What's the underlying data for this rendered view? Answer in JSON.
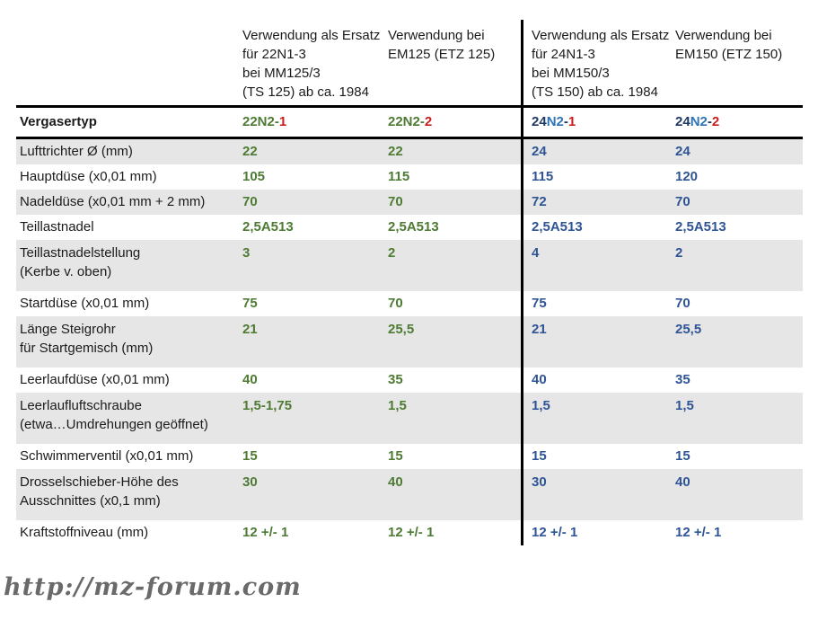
{
  "colors": {
    "green": "#4e7b33",
    "blue": "#2f5496",
    "navy": "#1f3864",
    "bright_blue": "#2e74b5",
    "red": "#c81e1e",
    "shading": "#e7e6e6",
    "text": "#1b1b1b",
    "watermark": "#6a6a6a"
  },
  "watermark": "http://mz-forum.com",
  "table": {
    "headers": [
      "Verwendung als Ersatz\nfür 22N1-3\nbei MM125/3\n(TS 125) ab ca. 1984",
      "Verwendung bei\nEM125 (ETZ 125)",
      "Verwendung als Ersatz\nfür 24N1-3\nbei MM150/3\n(TS 150) ab ca. 1984",
      "Verwendung bei\nEM150 (ETZ 150)"
    ],
    "type_row": {
      "label": "Vergasertyp",
      "values": [
        {
          "parts": [
            {
              "t": "22N2-",
              "c": "green"
            },
            {
              "t": "1",
              "c": "red"
            }
          ]
        },
        {
          "parts": [
            {
              "t": "22N2-",
              "c": "green"
            },
            {
              "t": "2",
              "c": "red"
            }
          ]
        },
        {
          "parts": [
            {
              "t": "24",
              "c": "navy"
            },
            {
              "t": "N2",
              "c": "bright_blue"
            },
            {
              "t": "-",
              "c": "navy"
            },
            {
              "t": "1",
              "c": "red"
            }
          ]
        },
        {
          "parts": [
            {
              "t": "24",
              "c": "navy"
            },
            {
              "t": "N2",
              "c": "bright_blue"
            },
            {
              "t": "-",
              "c": "navy"
            },
            {
              "t": "2",
              "c": "red"
            }
          ]
        }
      ]
    },
    "rows": [
      {
        "label": "Lufttrichter Ø (mm)",
        "values": [
          "22",
          "22",
          "24",
          "24"
        ],
        "shaded": true,
        "tall": false
      },
      {
        "label": "Hauptdüse (x0,01 mm)",
        "values": [
          "105",
          "115",
          "115",
          "120"
        ],
        "shaded": false,
        "tall": false
      },
      {
        "label": "Nadeldüse (x0,01 mm + 2 mm)",
        "values": [
          "70",
          "70",
          "72",
          "70"
        ],
        "shaded": true,
        "tall": false
      },
      {
        "label": "Teillastnadel",
        "values": [
          "2,5A513",
          "2,5A513",
          "2,5A513",
          "2,5A513"
        ],
        "shaded": false,
        "tall": false
      },
      {
        "label": "Teillastnadelstellung\n(Kerbe v. oben)",
        "values": [
          "3",
          "2",
          "4",
          "2"
        ],
        "shaded": true,
        "tall": true
      },
      {
        "label": "Startdüse (x0,01 mm)",
        "values": [
          "75",
          "70",
          "75",
          "70"
        ],
        "shaded": false,
        "tall": false
      },
      {
        "label": "Länge Steigrohr\nfür Startgemisch (mm)",
        "values": [
          "21",
          "25,5",
          "21",
          "25,5"
        ],
        "shaded": true,
        "tall": true
      },
      {
        "label": "Leerlaufdüse (x0,01 mm)",
        "values": [
          "40",
          "35",
          "40",
          "35"
        ],
        "shaded": false,
        "tall": false
      },
      {
        "label": "Leerlaufluftschraube\n(etwa…Umdrehungen geöffnet)",
        "values": [
          "1,5-1,75",
          "1,5",
          "1,5",
          "1,5"
        ],
        "shaded": true,
        "tall": true
      },
      {
        "label": "Schwimmerventil (x0,01 mm)",
        "values": [
          "15",
          "15",
          "15",
          "15"
        ],
        "shaded": false,
        "tall": false
      },
      {
        "label": "Drosselschieber-Höhe des\nAusschnittes (x0,1 mm)",
        "values": [
          "30",
          "40",
          "30",
          "40"
        ],
        "shaded": true,
        "tall": true
      },
      {
        "label": "Kraftstoffniveau (mm)",
        "values": [
          "12 +/- 1",
          "12 +/- 1",
          "12 +/- 1",
          "12 +/- 1"
        ],
        "shaded": false,
        "tall": false
      }
    ]
  }
}
